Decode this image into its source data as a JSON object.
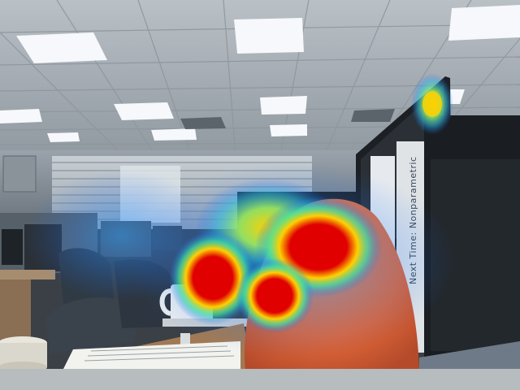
{
  "image": {
    "description_visible_text": {
      "book_spine": "Next Time: Nonparametric"
    },
    "overlay": {
      "type": "saliency-heatmap",
      "colors": {
        "hot": "#e00000",
        "warm": "#ffd000",
        "mid": "#40e0a0",
        "cool": "#1a6cff"
      }
    }
  }
}
